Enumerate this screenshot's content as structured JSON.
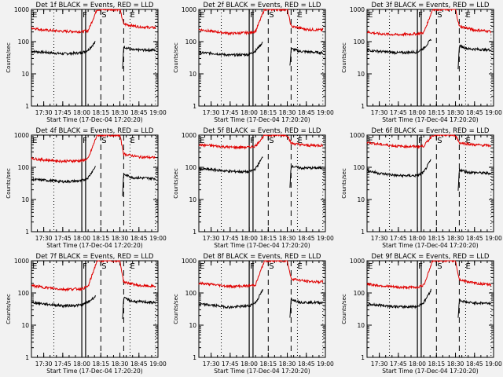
{
  "figure": {
    "background": "#f2f2f2",
    "colors": {
      "events": "#000000",
      "lld": "#e00000",
      "axes": "#000000"
    }
  },
  "chart_data": [
    {
      "type": "line",
      "title": "Det 1f BLACK = Events, RED = LLD",
      "xlabel": "Start Time (17-Dec-04 17:20:20)",
      "ylabel": "Counts/sec",
      "xlim": [
        "17:20:20",
        "19:00"
      ],
      "ylim": [
        1,
        1000
      ],
      "yscale": "log",
      "xticks": [
        "17:30",
        "17:45",
        "18:00",
        "18:15",
        "18:30",
        "18:45",
        "19:00"
      ],
      "yticks": [
        "1",
        "10",
        "100",
        "1000"
      ],
      "series": [
        {
          "name": "Events",
          "color": "#000000",
          "x": [
            "17:20",
            "17:30",
            "17:45",
            "18:00",
            "18:05",
            "18:11",
            "18:32",
            "18:33",
            "18:40",
            "18:58"
          ],
          "y": [
            50,
            47,
            42,
            45,
            55,
            100,
            12,
            70,
            55,
            55
          ]
        },
        {
          "name": "LLD",
          "color": "#e00000",
          "x": [
            "17:20",
            "17:30",
            "17:45",
            "18:00",
            "18:05",
            "18:12",
            "18:30",
            "18:33",
            "18:45",
            "18:58"
          ],
          "y": [
            270,
            230,
            210,
            205,
            220,
            1000,
            1000,
            350,
            290,
            270
          ]
        }
      ],
      "markers": {
        "F": [
          "18:00",
          "18:03"
        ],
        "S": "18:15",
        "dashed": "18:33",
        "dotted": [
          "17:38",
          "18:38",
          "18:58"
        ],
        "E_labels": [
          "17:21",
          "18:38"
        ]
      }
    },
    {
      "type": "line",
      "title": "Det 2f BLACK = Events, RED = LLD",
      "xlabel": "Start Time (17-Dec-04 17:20:20)",
      "ylabel": "Counts/sec",
      "xlim": [
        "17:20:20",
        "19:00"
      ],
      "ylim": [
        1,
        1000
      ],
      "yscale": "log",
      "xticks": [
        "17:30",
        "17:45",
        "18:00",
        "18:15",
        "18:30",
        "18:45",
        "19:00"
      ],
      "yticks": [
        "1",
        "10",
        "100",
        "1000"
      ],
      "series": [
        {
          "name": "Events",
          "color": "#000000",
          "x": [
            "17:20",
            "17:30",
            "17:45",
            "18:00",
            "18:05",
            "18:11",
            "18:32",
            "18:33",
            "18:40",
            "18:58"
          ],
          "y": [
            45,
            44,
            38,
            40,
            52,
            100,
            15,
            60,
            50,
            45
          ]
        },
        {
          "name": "LLD",
          "color": "#e00000",
          "x": [
            "17:20",
            "17:30",
            "17:45",
            "18:00",
            "18:05",
            "18:12",
            "18:30",
            "18:33",
            "18:45",
            "18:58"
          ],
          "y": [
            240,
            210,
            180,
            190,
            210,
            1000,
            1000,
            300,
            240,
            230
          ]
        }
      ],
      "markers": {
        "F": [
          "18:00",
          "18:03"
        ],
        "S": "18:15",
        "dashed": "18:33",
        "dotted": [
          "17:38",
          "18:38",
          "18:58"
        ],
        "E_labels": [
          "17:21",
          "18:38"
        ]
      }
    },
    {
      "type": "line",
      "title": "Det 3f BLACK = Events, RED = LLD",
      "xlabel": "Start Time (17-Dec-04 17:20:20)",
      "ylabel": "Counts/sec",
      "xlim": [
        "17:20:20",
        "19:00"
      ],
      "ylim": [
        1,
        1000
      ],
      "yscale": "log",
      "xticks": [
        "17:30",
        "17:45",
        "18:00",
        "18:15",
        "18:30",
        "18:45",
        "19:00"
      ],
      "yticks": [
        "1",
        "10",
        "100",
        "1000"
      ],
      "series": [
        {
          "name": "Events",
          "color": "#000000",
          "x": [
            "17:20",
            "17:30",
            "17:45",
            "18:00",
            "18:05",
            "18:11",
            "18:32",
            "18:33",
            "18:40",
            "18:58"
          ],
          "y": [
            55,
            50,
            45,
            48,
            62,
            120,
            12,
            75,
            60,
            55
          ]
        },
        {
          "name": "LLD",
          "color": "#e00000",
          "x": [
            "17:20",
            "17:30",
            "17:45",
            "18:00",
            "18:05",
            "18:12",
            "18:30",
            "18:33",
            "18:45",
            "18:58"
          ],
          "y": [
            200,
            175,
            165,
            175,
            190,
            1000,
            1000,
            300,
            230,
            210
          ]
        }
      ],
      "markers": {
        "F": [
          "18:00",
          "18:03"
        ],
        "S": "18:15",
        "dashed": "18:33",
        "dotted": [
          "17:38",
          "18:38",
          "18:58"
        ],
        "E_labels": [
          "17:21",
          "18:38"
        ]
      }
    },
    {
      "type": "line",
      "title": "Det 4f BLACK = Events, RED = LLD",
      "xlabel": "Start Time (17-Dec-04 17:20:20)",
      "ylabel": "Counts/sec",
      "xlim": [
        "17:20:20",
        "19:00"
      ],
      "ylim": [
        1,
        1000
      ],
      "yscale": "log",
      "xticks": [
        "17:30",
        "17:45",
        "18:00",
        "18:15",
        "18:30",
        "18:45",
        "19:00"
      ],
      "yticks": [
        "1",
        "10",
        "100",
        "1000"
      ],
      "series": [
        {
          "name": "Events",
          "color": "#000000",
          "x": [
            "17:20",
            "17:30",
            "17:45",
            "18:00",
            "18:05",
            "18:11",
            "18:32",
            "18:33",
            "18:40",
            "18:58"
          ],
          "y": [
            42,
            40,
            36,
            38,
            48,
            110,
            12,
            60,
            48,
            45
          ]
        },
        {
          "name": "LLD",
          "color": "#e00000",
          "x": [
            "17:20",
            "17:30",
            "17:45",
            "18:00",
            "18:05",
            "18:12",
            "18:30",
            "18:33",
            "18:45",
            "18:58"
          ],
          "y": [
            190,
            170,
            155,
            160,
            185,
            1000,
            1000,
            260,
            210,
            200
          ]
        }
      ],
      "markers": {
        "F": [
          "18:00",
          "18:03"
        ],
        "S": "18:15",
        "dashed": "18:33",
        "dotted": [
          "17:38",
          "18:38",
          "18:58"
        ],
        "E_labels": [
          "17:21",
          "18:38"
        ]
      }
    },
    {
      "type": "line",
      "title": "Det 5f BLACK = Events, RED = LLD",
      "xlabel": "Start Time (17-Dec-04 17:20:20)",
      "ylabel": "Counts/sec",
      "xlim": [
        "17:20:20",
        "19:00"
      ],
      "ylim": [
        1,
        1000
      ],
      "yscale": "log",
      "xticks": [
        "17:30",
        "17:45",
        "18:00",
        "18:15",
        "18:30",
        "18:45",
        "19:00"
      ],
      "yticks": [
        "1",
        "10",
        "100",
        "1000"
      ],
      "series": [
        {
          "name": "Events",
          "color": "#000000",
          "x": [
            "17:20",
            "17:30",
            "17:45",
            "18:00",
            "18:05",
            "18:11",
            "18:32",
            "18:33",
            "18:40",
            "18:58"
          ],
          "y": [
            90,
            85,
            75,
            72,
            90,
            220,
            22,
            110,
            95,
            95
          ]
        },
        {
          "name": "LLD",
          "color": "#e00000",
          "x": [
            "17:20",
            "17:30",
            "17:45",
            "18:00",
            "18:05",
            "18:12",
            "18:30",
            "18:33",
            "18:45",
            "18:58"
          ],
          "y": [
            500,
            470,
            420,
            420,
            460,
            1000,
            1000,
            560,
            480,
            480
          ]
        }
      ],
      "markers": {
        "F": [
          "18:00",
          "18:03"
        ],
        "S": "18:15",
        "dashed": "18:33",
        "dotted": [
          "17:38",
          "18:38",
          "18:58"
        ],
        "E_labels": [
          "17:21",
          "18:38"
        ]
      }
    },
    {
      "type": "line",
      "title": "Det 6f BLACK = Events, RED = LLD",
      "xlabel": "Start Time (17-Dec-04 17:20:20)",
      "ylabel": "Counts/sec",
      "xlim": [
        "17:20:20",
        "19:00"
      ],
      "ylim": [
        1,
        1000
      ],
      "yscale": "log",
      "xticks": [
        "17:30",
        "17:45",
        "18:00",
        "18:15",
        "18:30",
        "18:45",
        "19:00"
      ],
      "yticks": [
        "1",
        "10",
        "100",
        "1000"
      ],
      "series": [
        {
          "name": "Events",
          "color": "#000000",
          "x": [
            "17:20",
            "17:30",
            "17:45",
            "18:00",
            "18:05",
            "18:11",
            "18:32",
            "18:33",
            "18:40",
            "18:58"
          ],
          "y": [
            80,
            65,
            55,
            55,
            70,
            180,
            15,
            85,
            70,
            65
          ]
        },
        {
          "name": "LLD",
          "color": "#e00000",
          "x": [
            "17:20",
            "17:30",
            "17:45",
            "18:00",
            "18:05",
            "18:12",
            "18:30",
            "18:33",
            "18:45",
            "18:58"
          ],
          "y": [
            600,
            520,
            450,
            440,
            460,
            1000,
            1000,
            580,
            500,
            470
          ]
        }
      ],
      "markers": {
        "F": [
          "18:00",
          "18:03"
        ],
        "S": "18:15",
        "dashed": "18:33",
        "dotted": [
          "17:38",
          "18:38",
          "18:58"
        ],
        "E_labels": [
          "17:21",
          "18:38"
        ]
      }
    },
    {
      "type": "line",
      "title": "Det 7f BLACK = Events, RED = LLD",
      "xlabel": "Start Time (17-Dec-04 17:20:20)",
      "ylabel": "Counts/sec",
      "xlim": [
        "17:20:20",
        "19:00"
      ],
      "ylim": [
        1,
        1000
      ],
      "yscale": "log",
      "xticks": [
        "17:30",
        "17:45",
        "18:00",
        "18:15",
        "18:30",
        "18:45",
        "19:00"
      ],
      "yticks": [
        "1",
        "10",
        "100",
        "1000"
      ],
      "series": [
        {
          "name": "Events",
          "color": "#000000",
          "x": [
            "17:20",
            "17:30",
            "17:45",
            "18:00",
            "18:05",
            "18:11",
            "18:32",
            "18:33",
            "18:40",
            "18:58"
          ],
          "y": [
            52,
            46,
            40,
            42,
            52,
            80,
            14,
            70,
            55,
            50
          ]
        },
        {
          "name": "LLD",
          "color": "#e00000",
          "x": [
            "17:20",
            "17:30",
            "17:45",
            "18:00",
            "18:05",
            "18:12",
            "18:30",
            "18:33",
            "18:45",
            "18:58"
          ],
          "y": [
            170,
            150,
            130,
            135,
            160,
            1000,
            1000,
            220,
            170,
            160
          ]
        }
      ],
      "markers": {
        "F": [
          "18:00",
          "18:03"
        ],
        "S": "18:15",
        "dashed": "18:33",
        "dotted": [
          "17:38",
          "18:38",
          "18:58"
        ],
        "E_labels": [
          "17:21",
          "18:38"
        ]
      }
    },
    {
      "type": "line",
      "title": "Det 8f BLACK = Events, RED = LLD",
      "xlabel": "Start Time (17-Dec-04 17:20:20)",
      "ylabel": "Counts/sec",
      "xlim": [
        "17:20:20",
        "19:00"
      ],
      "ylim": [
        1,
        1000
      ],
      "yscale": "log",
      "xticks": [
        "17:30",
        "17:45",
        "18:00",
        "18:15",
        "18:30",
        "18:45",
        "19:00"
      ],
      "yticks": [
        "1",
        "10",
        "100",
        "1000"
      ],
      "series": [
        {
          "name": "Events",
          "color": "#000000",
          "x": [
            "17:20",
            "17:30",
            "17:45",
            "18:00",
            "18:05",
            "18:11",
            "18:32",
            "18:33",
            "18:40",
            "18:58"
          ],
          "y": [
            45,
            42,
            36,
            40,
            50,
            130,
            14,
            65,
            52,
            50
          ]
        },
        {
          "name": "LLD",
          "color": "#e00000",
          "x": [
            "17:20",
            "17:30",
            "17:45",
            "18:00",
            "18:05",
            "18:12",
            "18:30",
            "18:33",
            "18:45",
            "18:58"
          ],
          "y": [
            200,
            185,
            160,
            165,
            180,
            1000,
            1000,
            280,
            230,
            220
          ]
        }
      ],
      "markers": {
        "F": [
          "18:00",
          "18:03"
        ],
        "S": "18:15",
        "dashed": "18:33",
        "dotted": [
          "17:38",
          "18:38",
          "18:58"
        ],
        "E_labels": [
          "17:21",
          "18:38"
        ]
      }
    },
    {
      "type": "line",
      "title": "Det 9f BLACK = Events, RED = LLD",
      "xlabel": "Start Time (17-Dec-04 17:20:20)",
      "ylabel": "Counts/sec",
      "xlim": [
        "17:20:20",
        "19:00"
      ],
      "ylim": [
        1,
        1000
      ],
      "yscale": "log",
      "xticks": [
        "17:30",
        "17:45",
        "18:00",
        "18:15",
        "18:30",
        "18:45",
        "19:00"
      ],
      "yticks": [
        "1",
        "10",
        "100",
        "1000"
      ],
      "series": [
        {
          "name": "Events",
          "color": "#000000",
          "x": [
            "17:20",
            "17:30",
            "17:45",
            "18:00",
            "18:05",
            "18:11",
            "18:32",
            "18:33",
            "18:40",
            "18:58"
          ],
          "y": [
            45,
            42,
            37,
            38,
            50,
            130,
            15,
            60,
            50,
            48
          ]
        },
        {
          "name": "LLD",
          "color": "#e00000",
          "x": [
            "17:20",
            "17:30",
            "17:45",
            "18:00",
            "18:05",
            "18:12",
            "18:30",
            "18:33",
            "18:45",
            "18:58"
          ],
          "y": [
            190,
            170,
            150,
            150,
            175,
            1000,
            1000,
            260,
            200,
            180
          ]
        }
      ],
      "markers": {
        "F": [
          "18:00",
          "18:03"
        ],
        "S": "18:15",
        "dashed": "18:33",
        "dotted": [
          "17:38",
          "18:38",
          "18:58"
        ],
        "E_labels": [
          "17:21",
          "18:38"
        ]
      }
    }
  ],
  "labels": {
    "F": "F",
    "S": "S",
    "E": "E"
  }
}
